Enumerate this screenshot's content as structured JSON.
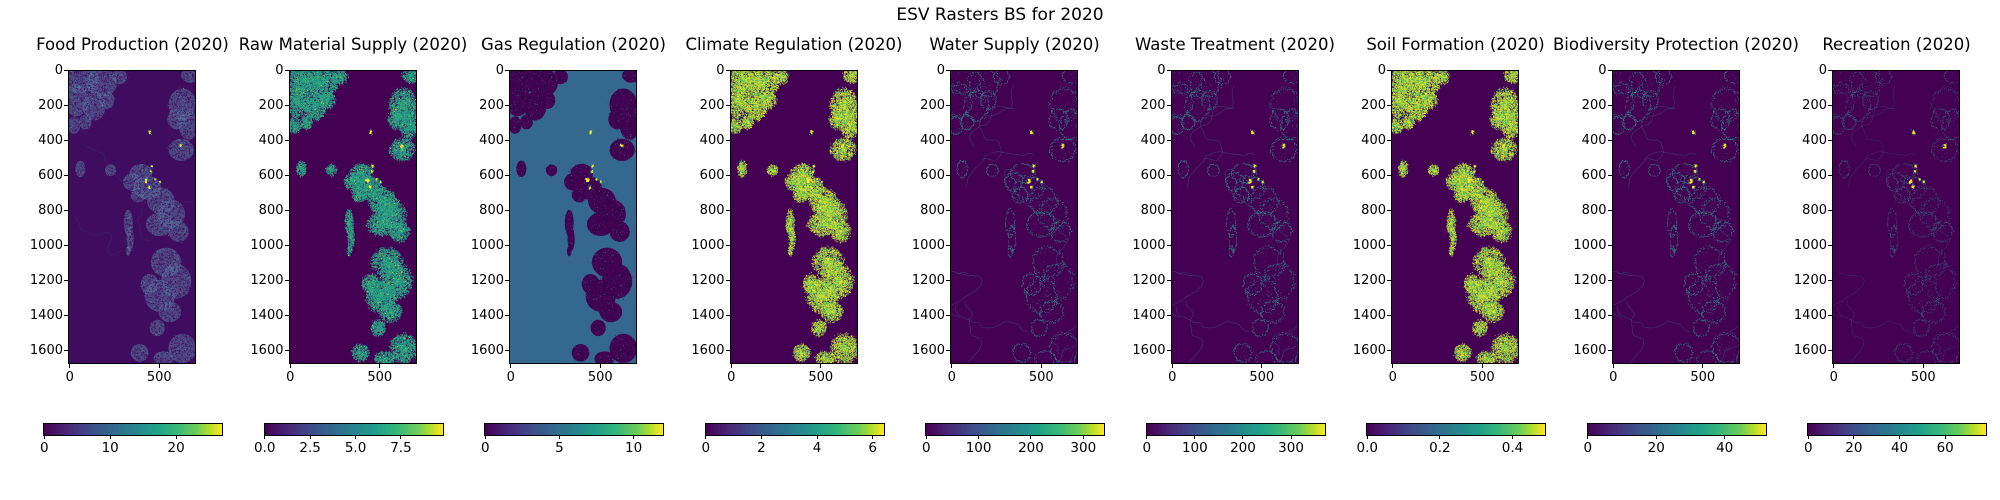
{
  "figure": {
    "title": "ESV Rasters BS for 2020"
  },
  "axes": {
    "y_ticks": [
      "0",
      "200",
      "400",
      "600",
      "800",
      "1000",
      "1200",
      "1400",
      "1600"
    ],
    "x_ticks": [
      "0",
      "500"
    ]
  },
  "colors": {
    "colormap": "viridis",
    "low": "#440154",
    "mid": "#31688e",
    "teal": "#21a585",
    "high": "#fde725",
    "background": "#ffffff"
  },
  "subplots": [
    {
      "title": "Food Production (2020)",
      "style": "patches",
      "colorbar": {
        "tick_labels": [
          "0",
          "10",
          "20"
        ],
        "tick_values": [
          0,
          10,
          20
        ],
        "vmax": 27
      }
    },
    {
      "title": "Raw Material Supply (2020)",
      "style": "speckle-teal",
      "colorbar": {
        "tick_labels": [
          "0.0",
          "2.5",
          "5.0",
          "7.5"
        ],
        "tick_values": [
          0,
          2.5,
          5,
          7.5
        ],
        "vmax": 9.8
      }
    },
    {
      "title": "Gas Regulation (2020)",
      "style": "invert",
      "colorbar": {
        "tick_labels": [
          "0",
          "5",
          "10"
        ],
        "tick_values": [
          0,
          5,
          10
        ],
        "vmax": 12
      }
    },
    {
      "title": "Climate Regulation (2020)",
      "style": "speckle-yellow",
      "colorbar": {
        "tick_labels": [
          "0",
          "2",
          "4",
          "6"
        ],
        "tick_values": [
          0,
          2,
          4,
          6
        ],
        "vmax": 6.4
      }
    },
    {
      "title": "Water Supply (2020)",
      "style": "outline",
      "colorbar": {
        "tick_labels": [
          "0",
          "100",
          "200",
          "300"
        ],
        "tick_values": [
          0,
          100,
          200,
          300
        ],
        "vmax": 340
      }
    },
    {
      "title": "Waste Treatment (2020)",
      "style": "outline",
      "colorbar": {
        "tick_labels": [
          "0",
          "100",
          "200",
          "300"
        ],
        "tick_values": [
          0,
          100,
          200,
          300
        ],
        "vmax": 370
      }
    },
    {
      "title": "Soil Formation (2020)",
      "style": "speckle-yellow",
      "colorbar": {
        "tick_labels": [
          "0.0",
          "0.2",
          "0.4"
        ],
        "tick_values": [
          0,
          0.2,
          0.4
        ],
        "vmax": 0.49
      }
    },
    {
      "title": "Biodiversity Protection (2020)",
      "style": "outline",
      "colorbar": {
        "tick_labels": [
          "0",
          "20",
          "40"
        ],
        "tick_values": [
          0,
          20,
          40
        ],
        "vmax": 52
      }
    },
    {
      "title": "Recreation (2020)",
      "style": "outline-faint",
      "colorbar": {
        "tick_labels": [
          "0",
          "20",
          "40",
          "60"
        ],
        "tick_values": [
          0,
          20,
          40,
          60
        ],
        "vmax": 78
      }
    }
  ],
  "chart_data": [
    {
      "type": "heatmap",
      "title": "Food Production (2020)",
      "colormap": "viridis",
      "x_axis": {
        "ticks": [
          0,
          500
        ],
        "range": [
          0,
          700
        ]
      },
      "y_axis": {
        "ticks": [
          0,
          200,
          400,
          600,
          800,
          1000,
          1200,
          1400,
          1600
        ],
        "range": [
          0,
          1670
        ],
        "inverted": true
      },
      "colorbar": {
        "orientation": "horizontal",
        "position": "below",
        "ticks": [
          0,
          10,
          20
        ],
        "range": [
          0,
          27
        ]
      },
      "pattern": "dark low-value background with slate-blue moderate patches and small bright hotspots"
    },
    {
      "type": "heatmap",
      "title": "Raw Material Supply (2020)",
      "colormap": "viridis",
      "x_axis": {
        "ticks": [
          0,
          500
        ],
        "range": [
          0,
          700
        ]
      },
      "y_axis": {
        "ticks": [
          0,
          200,
          400,
          600,
          800,
          1000,
          1200,
          1400,
          1600
        ],
        "range": [
          0,
          1670
        ],
        "inverted": true
      },
      "colorbar": {
        "orientation": "horizontal",
        "position": "below",
        "ticks": [
          0,
          2.5,
          5,
          7.5
        ],
        "range": [
          0,
          9.8
        ]
      },
      "pattern": "dark background with teal high-value vegetated clusters and a few yellow spots"
    },
    {
      "type": "heatmap",
      "title": "Gas Regulation (2020)",
      "colormap": "viridis",
      "x_axis": {
        "ticks": [
          0,
          500
        ],
        "range": [
          0,
          700
        ]
      },
      "y_axis": {
        "ticks": [
          0,
          200,
          400,
          600,
          800,
          1000,
          1200,
          1400,
          1600
        ],
        "range": [
          0,
          1670
        ],
        "inverted": true
      },
      "colorbar": {
        "orientation": "horizontal",
        "position": "below",
        "ticks": [
          0,
          5,
          10
        ],
        "range": [
          0,
          12
        ]
      },
      "pattern": "mostly mid-value steel-blue area with dark low-value patches and sparse bright dots"
    },
    {
      "type": "heatmap",
      "title": "Climate Regulation (2020)",
      "colormap": "viridis",
      "x_axis": {
        "ticks": [
          0,
          500
        ],
        "range": [
          0,
          700
        ]
      },
      "y_axis": {
        "ticks": [
          0,
          200,
          400,
          600,
          800,
          1000,
          1200,
          1400,
          1600
        ],
        "range": [
          0,
          1670
        ],
        "inverted": true
      },
      "colorbar": {
        "orientation": "horizontal",
        "position": "below",
        "ticks": [
          0,
          2,
          4,
          6
        ],
        "range": [
          0,
          6.4
        ]
      },
      "pattern": "dark background with bright yellow-green high-value clusters"
    },
    {
      "type": "heatmap",
      "title": "Water Supply (2020)",
      "colormap": "viridis",
      "x_axis": {
        "ticks": [
          0,
          500
        ],
        "range": [
          0,
          700
        ]
      },
      "y_axis": {
        "ticks": [
          0,
          200,
          400,
          600,
          800,
          1000,
          1200,
          1400,
          1600
        ],
        "range": [
          0,
          1670
        ],
        "inverted": true
      },
      "colorbar": {
        "orientation": "horizontal",
        "position": "below",
        "ticks": [
          0,
          100,
          200,
          300
        ],
        "range": [
          0,
          340
        ]
      },
      "pattern": "dark background with thin teal boundary traces and bright central hotspots"
    },
    {
      "type": "heatmap",
      "title": "Waste Treatment (2020)",
      "colormap": "viridis",
      "x_axis": {
        "ticks": [
          0,
          500
        ],
        "range": [
          0,
          700
        ]
      },
      "y_axis": {
        "ticks": [
          0,
          200,
          400,
          600,
          800,
          1000,
          1200,
          1400,
          1600
        ],
        "range": [
          0,
          1670
        ],
        "inverted": true
      },
      "colorbar": {
        "orientation": "horizontal",
        "position": "below",
        "ticks": [
          0,
          100,
          200,
          300
        ],
        "range": [
          0,
          370
        ]
      },
      "pattern": "dark background with thin teal boundary traces and bright central hotspots"
    },
    {
      "type": "heatmap",
      "title": "Soil Formation (2020)",
      "colormap": "viridis",
      "x_axis": {
        "ticks": [
          0,
          500
        ],
        "range": [
          0,
          700
        ]
      },
      "y_axis": {
        "ticks": [
          0,
          200,
          400,
          600,
          800,
          1000,
          1200,
          1400,
          1600
        ],
        "range": [
          0,
          1670
        ],
        "inverted": true
      },
      "colorbar": {
        "orientation": "horizontal",
        "position": "below",
        "ticks": [
          0,
          0.2,
          0.4
        ],
        "range": [
          0,
          0.49
        ]
      },
      "pattern": "dark background with bright yellow-green high-value clusters"
    },
    {
      "type": "heatmap",
      "title": "Biodiversity Protection (2020)",
      "colormap": "viridis",
      "x_axis": {
        "ticks": [
          0,
          500
        ],
        "range": [
          0,
          700
        ]
      },
      "y_axis": {
        "ticks": [
          0,
          200,
          400,
          600,
          800,
          1000,
          1200,
          1400,
          1600
        ],
        "range": [
          0,
          1670
        ],
        "inverted": true
      },
      "colorbar": {
        "orientation": "horizontal",
        "position": "below",
        "ticks": [
          0,
          20,
          40
        ],
        "range": [
          0,
          52
        ]
      },
      "pattern": "dark background with thin teal boundary traces and bright central hotspots"
    },
    {
      "type": "heatmap",
      "title": "Recreation (2020)",
      "colormap": "viridis",
      "x_axis": {
        "ticks": [
          0,
          500
        ],
        "range": [
          0,
          700
        ]
      },
      "y_axis": {
        "ticks": [
          0,
          200,
          400,
          600,
          800,
          1000,
          1200,
          1400,
          1600
        ],
        "range": [
          0,
          1670
        ],
        "inverted": true
      },
      "colorbar": {
        "orientation": "horizontal",
        "position": "below",
        "ticks": [
          0,
          20,
          40,
          60
        ],
        "range": [
          0,
          78
        ]
      },
      "pattern": "dark background with faint teal boundary traces and bright central hotspots"
    }
  ]
}
